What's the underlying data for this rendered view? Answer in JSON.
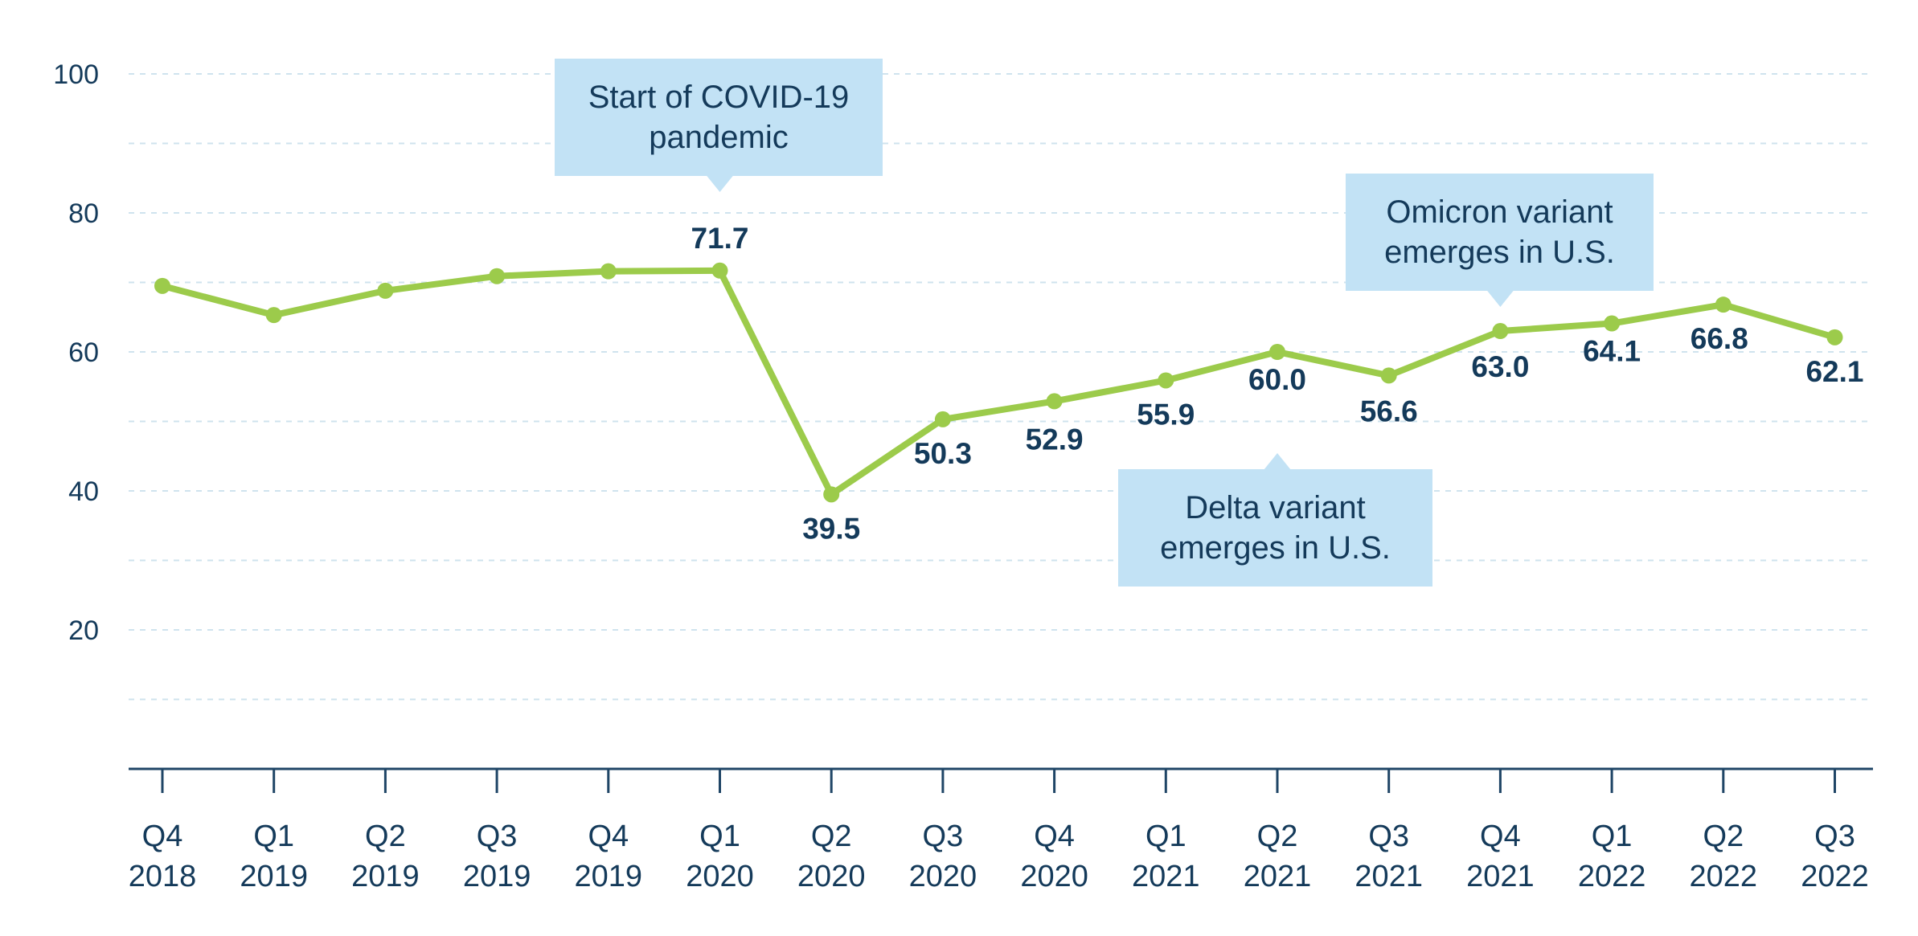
{
  "colors": {
    "line": "#9ccb4b",
    "text": "#143a5a",
    "axis": "#1f4566",
    "grid": "#cfe3ee",
    "callout": "#c2e2f5"
  },
  "chart_data": {
    "type": "line",
    "title": "",
    "xlabel": "",
    "ylabel": "",
    "ylim": [
      0,
      100
    ],
    "yticks": [
      20,
      40,
      60,
      80,
      100
    ],
    "grid": "horizontal dashed every 10",
    "categories": [
      [
        "Q4",
        "2018"
      ],
      [
        "Q1",
        "2019"
      ],
      [
        "Q2",
        "2019"
      ],
      [
        "Q3",
        "2019"
      ],
      [
        "Q4",
        "2019"
      ],
      [
        "Q1",
        "2020"
      ],
      [
        "Q2",
        "2020"
      ],
      [
        "Q3",
        "2020"
      ],
      [
        "Q4",
        "2020"
      ],
      [
        "Q1",
        "2021"
      ],
      [
        "Q2",
        "2021"
      ],
      [
        "Q3",
        "2021"
      ],
      [
        "Q4",
        "2021"
      ],
      [
        "Q1",
        "2022"
      ],
      [
        "Q2",
        "2022"
      ],
      [
        "Q3",
        "2022"
      ]
    ],
    "series": [
      {
        "values": [
          69.5,
          65.3,
          68.8,
          70.9,
          71.6,
          71.7,
          39.5,
          50.3,
          52.9,
          55.9,
          60.0,
          56.6,
          63.0,
          64.1,
          66.8,
          62.1
        ],
        "labels": [
          null,
          null,
          null,
          null,
          null,
          "71.7",
          "39.5",
          "50.3",
          "52.9",
          "55.9",
          "60.0",
          "56.6",
          "63.0",
          "64.1",
          "66.8",
          "62.1"
        ]
      }
    ],
    "annotations": [
      {
        "lines": [
          "Start of COVID-19",
          "pandemic"
        ],
        "category_index": 5
      },
      {
        "lines": [
          "Delta variant",
          "emerges in U.S."
        ],
        "category_index": 10
      },
      {
        "lines": [
          "Omicron variant",
          "emerges in U.S."
        ],
        "category_index": 12
      }
    ]
  }
}
